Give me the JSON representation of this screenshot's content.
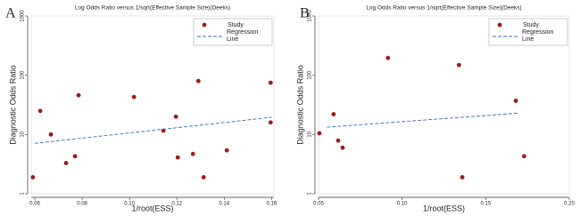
{
  "chart_data": [
    {
      "type": "scatter",
      "panel": "A",
      "title": "Log Odds Ratio versus 1/sqrt(Effective Sample Size)(Deeks)",
      "x_label": "1/root(ESS)",
      "y_label": "Diagnostic Odds Ratio",
      "log_scale": true,
      "legend": "top-right",
      "xlim": [
        0.0585,
        0.161
      ],
      "ylim": [
        1,
        1000
      ],
      "xticks": [
        {
          "value": 0.06,
          "label": "0.06"
        },
        {
          "value": 0.08,
          "label": "0.08"
        },
        {
          "value": 0.1,
          "label": "0.10"
        },
        {
          "value": 0.12,
          "label": "0.12"
        },
        {
          "value": 0.14,
          "label": "0.14"
        },
        {
          "value": 0.16,
          "label": "0.16"
        }
      ],
      "yticks": [
        1,
        10,
        100,
        1000
      ],
      "series": [
        {
          "name": "Study",
          "color": "#9b1c1c",
          "x": [
            0.0592,
            0.0623,
            0.0668,
            0.0732,
            0.077,
            0.0785,
            0.1019,
            0.1143,
            0.1196,
            0.1204,
            0.1268,
            0.1291,
            0.1313,
            0.1411,
            0.1596,
            0.1596
          ],
          "values": [
            1.9,
            25,
            10,
            3.3,
            4.3,
            46,
            43,
            11.6,
            20,
            4.1,
            4.7,
            80,
            1.9,
            5.4,
            75,
            16
          ]
        },
        {
          "name": "Regression Line",
          "color": "#3a6fb0",
          "x": [
            0.06,
            0.16
          ],
          "values": [
            7.1,
            19.5
          ]
        }
      ]
    },
    {
      "type": "scatter",
      "panel": "B",
      "title": "Log Odds Ratio versus 1/sqrt(Effective Sample Size)(Deeks)",
      "x_label": "1/root(ESS)",
      "y_label": "Diagnostic Odds Ratio",
      "log_scale": true,
      "legend": "top-right",
      "xlim": [
        0.05,
        0.2
      ],
      "ylim": [
        1,
        1000
      ],
      "xticks": [
        {
          "value": 0.05,
          "label": "0.05"
        },
        {
          "value": 0.1,
          "label": "0.10"
        },
        {
          "value": 0.15,
          "label": "0.15"
        },
        {
          "value": 0.2,
          "label": "0.20"
        }
      ],
      "yticks": [
        1,
        10,
        100,
        1000
      ],
      "series": [
        {
          "name": "Study",
          "color": "#9b1c1c",
          "x": [
            0.0505,
            0.059,
            0.0617,
            0.0644,
            0.0915,
            0.134,
            0.136,
            0.168,
            0.173
          ],
          "values": [
            10.5,
            22,
            7.9,
            6,
            196,
            149,
            1.9,
            37,
            4.3
          ]
        },
        {
          "name": "Regression Line",
          "color": "#3a6fb0",
          "x": [
            0.055,
            0.17
          ],
          "values": [
            13.3,
            23
          ]
        }
      ]
    }
  ]
}
